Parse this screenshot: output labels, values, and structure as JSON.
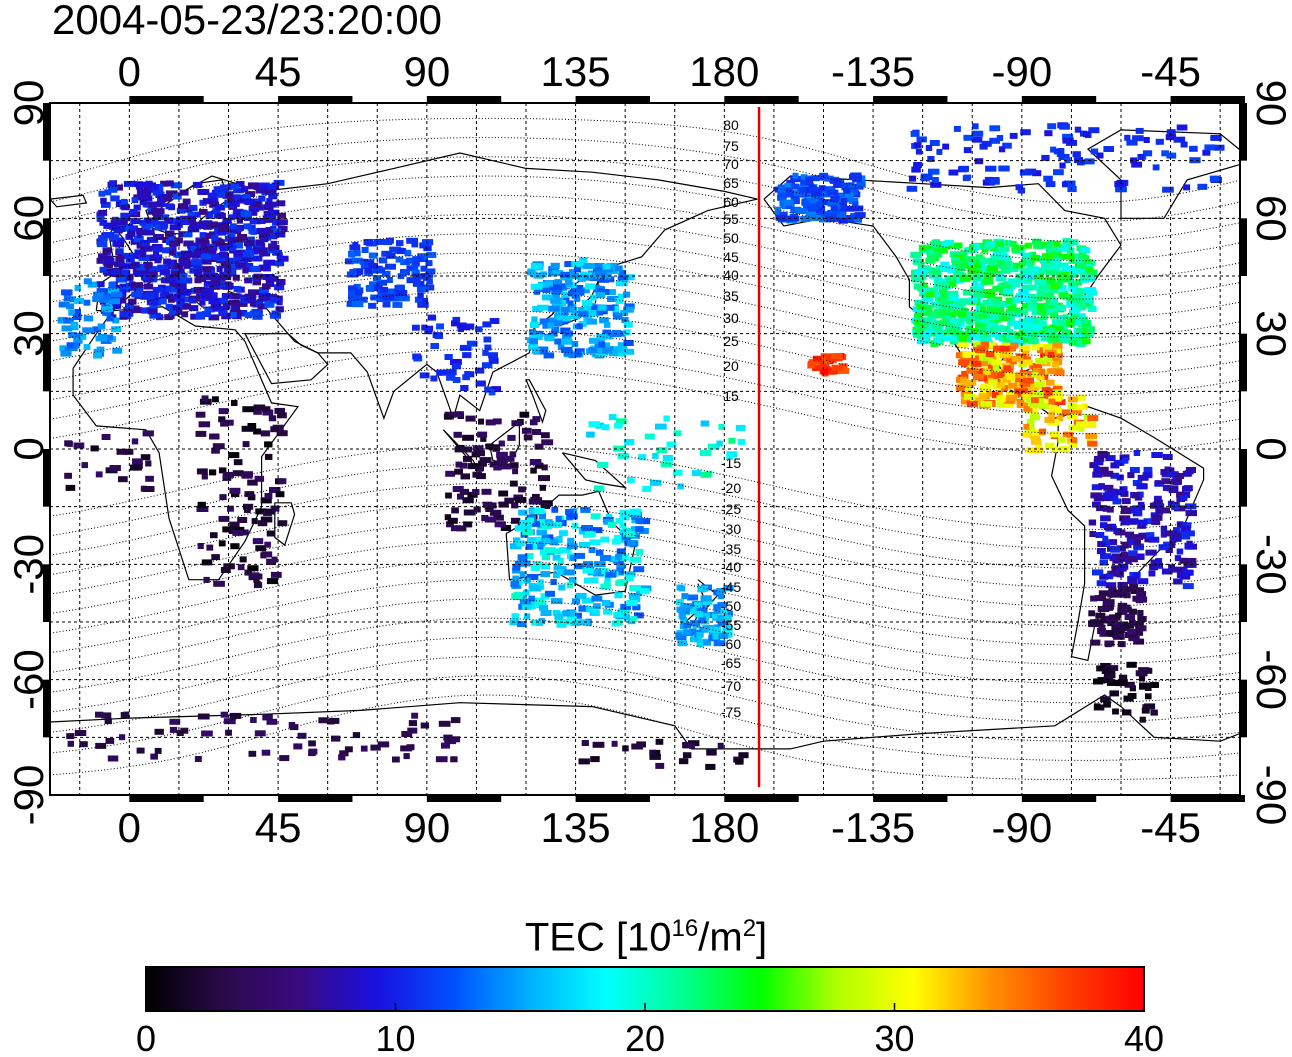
{
  "title": "2004-05-23/23:20:00",
  "map": {
    "lon_ticks_top": [
      "0",
      "45",
      "90",
      "135",
      "180",
      "-135",
      "-90",
      "-45"
    ],
    "lon_ticks_bottom": [
      "0",
      "45",
      "90",
      "135",
      "180",
      "-135",
      "-90",
      "-45"
    ],
    "lat_ticks_left": [
      "90",
      "60",
      "30",
      "0",
      "-30",
      "-60",
      "-90"
    ],
    "lat_ticks_right": [
      "90",
      "60",
      "30",
      "0",
      "-30",
      "-60",
      "-90"
    ],
    "contour_labels_north": [
      "80",
      "75",
      "70",
      "65",
      "60",
      "55",
      "50",
      "45",
      "40",
      "35",
      "30",
      "25",
      "20",
      "15"
    ],
    "contour_labels_south": [
      "-15",
      "-20",
      "-25",
      "-30",
      "-35",
      "-40",
      "-45",
      "-50",
      "-55",
      "-60",
      "-65",
      "-70",
      "-75"
    ],
    "terminator_color": "#e00000",
    "terminator_lon": 190.5
  },
  "colorbar": {
    "label_main": "TEC  [10",
    "label_exp1": "16",
    "label_mid": "/m",
    "label_exp2": "2",
    "label_end": "]",
    "ticks": [
      "0",
      "10",
      "20",
      "30",
      "40"
    ],
    "range": [
      0,
      40
    ],
    "colors": [
      "#000000",
      "#2a0a4a",
      "#3a0a80",
      "#1a10e0",
      "#0050ff",
      "#00b0ff",
      "#00ffff",
      "#00ff90",
      "#00ff00",
      "#b0ff00",
      "#ffff00",
      "#ff9000",
      "#ff4000",
      "#ff0000"
    ]
  }
}
